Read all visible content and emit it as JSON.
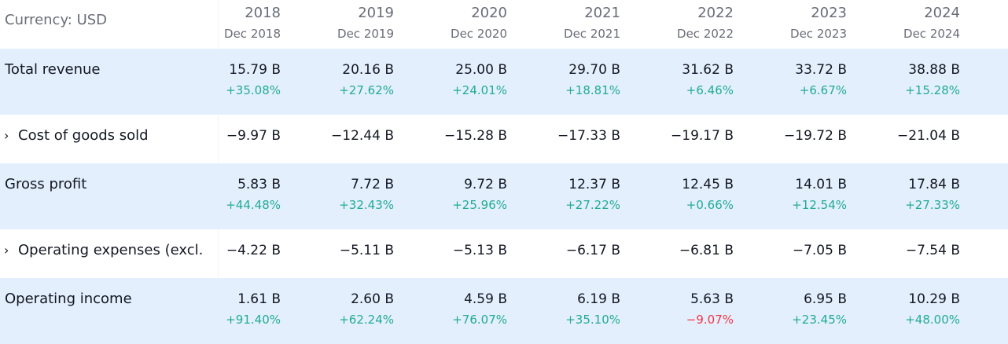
{
  "currency_label": "Currency: USD",
  "colors": {
    "positive": "#22ab94",
    "negative": "#f23645",
    "band": "#e3effd",
    "muted": "#6a6d78"
  },
  "periods": [
    {
      "year": "2018",
      "date": "Dec 2018"
    },
    {
      "year": "2019",
      "date": "Dec 2019"
    },
    {
      "year": "2020",
      "date": "Dec 2020"
    },
    {
      "year": "2021",
      "date": "Dec 2021"
    },
    {
      "year": "2022",
      "date": "Dec 2022"
    },
    {
      "year": "2023",
      "date": "Dec 2023"
    },
    {
      "year": "2024",
      "date": "Dec 2024"
    }
  ],
  "rows": [
    {
      "label": "Total revenue",
      "expandable": false,
      "values": [
        "15.79 B",
        "20.16 B",
        "25.00 B",
        "29.70 B",
        "31.62 B",
        "33.72 B",
        "38.88 B"
      ],
      "changes": [
        "+35.08%",
        "+27.62%",
        "+24.01%",
        "+18.81%",
        "+6.46%",
        "+6.67%",
        "+15.28%"
      ]
    },
    {
      "label": "Cost of goods sold",
      "expandable": true,
      "values": [
        "−9.97 B",
        "−12.44 B",
        "−15.28 B",
        "−17.33 B",
        "−19.17 B",
        "−19.72 B",
        "−21.04 B"
      ],
      "changes": []
    },
    {
      "label": "Gross profit",
      "expandable": false,
      "values": [
        "5.83 B",
        "7.72 B",
        "9.72 B",
        "12.37 B",
        "12.45 B",
        "14.01 B",
        "17.84 B"
      ],
      "changes": [
        "+44.48%",
        "+32.43%",
        "+25.96%",
        "+27.22%",
        "+0.66%",
        "+12.54%",
        "+27.33%"
      ]
    },
    {
      "label": "Operating expenses (excl.",
      "expandable": true,
      "values": [
        "−4.22 B",
        "−5.11 B",
        "−5.13 B",
        "−6.17 B",
        "−6.81 B",
        "−7.05 B",
        "−7.54 B"
      ],
      "changes": []
    },
    {
      "label": "Operating income",
      "expandable": false,
      "values": [
        "1.61 B",
        "2.60 B",
        "4.59 B",
        "6.19 B",
        "5.63 B",
        "6.95 B",
        "10.29 B"
      ],
      "changes": [
        "+91.40%",
        "+62.24%",
        "+76.07%",
        "+35.10%",
        "−9.07%",
        "+23.45%",
        "+48.00%"
      ]
    }
  ]
}
